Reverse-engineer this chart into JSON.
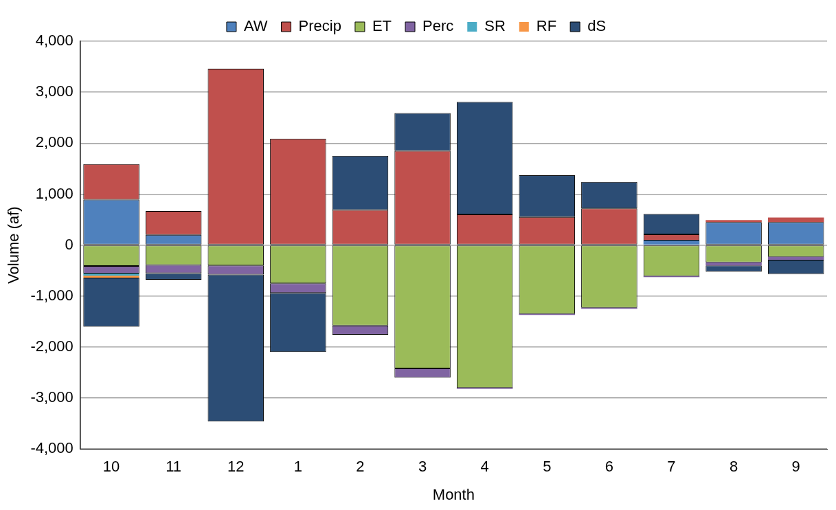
{
  "chart_data": {
    "type": "bar",
    "stacked": true,
    "xlabel": "Month",
    "ylabel": "Volume (af)",
    "categories": [
      "10",
      "11",
      "12",
      "1",
      "2",
      "3",
      "4",
      "5",
      "6",
      "7",
      "8",
      "9"
    ],
    "series": [
      {
        "name": "AW",
        "color": "#4f81bd",
        "values": [
          890,
          200,
          0,
          0,
          0,
          0,
          0,
          0,
          0,
          90,
          450,
          450
        ]
      },
      {
        "name": "Precip",
        "color": "#c0504d",
        "values": [
          700,
          470,
          3460,
          2090,
          690,
          1850,
          600,
          550,
          720,
          120,
          40,
          90
        ]
      },
      {
        "name": "ET",
        "color": "#9bbb59",
        "values": [
          -410,
          -390,
          -400,
          -750,
          -1580,
          -2420,
          -2800,
          -1350,
          -1230,
          -610,
          -340,
          -230
        ]
      },
      {
        "name": "Perc",
        "color": "#8064a2",
        "values": [
          -150,
          -160,
          -180,
          -190,
          -180,
          -180,
          -20,
          -20,
          -20,
          -20,
          -60,
          -60
        ]
      },
      {
        "name": "SR",
        "color": "#4bacc6",
        "values": [
          -40,
          0,
          0,
          0,
          0,
          0,
          0,
          0,
          0,
          0,
          0,
          0
        ]
      },
      {
        "name": "RF",
        "color": "#f79646",
        "values": [
          -40,
          0,
          0,
          0,
          0,
          0,
          0,
          0,
          0,
          0,
          0,
          0
        ]
      },
      {
        "name": "dS",
        "color": "#2c4d75",
        "values": [
          -960,
          -130,
          -2880,
          -1160,
          1060,
          740,
          2210,
          820,
          520,
          400,
          -120,
          -280
        ]
      }
    ],
    "ylim": [
      -4000,
      4000
    ],
    "yticks": [
      {
        "value": -4000,
        "label": "-4,000"
      },
      {
        "value": -3000,
        "label": "-3,000"
      },
      {
        "value": -2000,
        "label": "-2,000"
      },
      {
        "value": -1000,
        "label": "-1,000"
      },
      0,
      {
        "value": 1000,
        "label": "1,000"
      },
      {
        "value": 2000,
        "label": "2,000"
      },
      {
        "value": 3000,
        "label": "3,000"
      },
      {
        "value": 4000,
        "label": "4,000"
      }
    ],
    "grid": "y",
    "legend": "top"
  }
}
